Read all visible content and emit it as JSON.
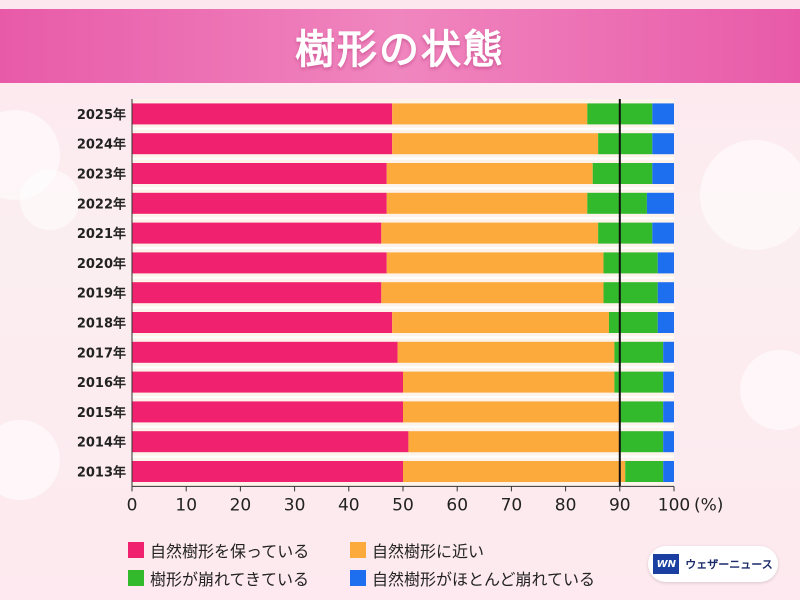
{
  "header": {
    "title": "樹形の状態"
  },
  "legend": {
    "items": [
      {
        "label": "自然樹形を保っている",
        "color": "#f0216e"
      },
      {
        "label": "自然樹形に近い",
        "color": "#fcaa3c"
      },
      {
        "label": "樹形が崩れてきている",
        "color": "#33b92c"
      },
      {
        "label": "自然樹形がほとんど崩れている",
        "color": "#1e6ef0"
      }
    ]
  },
  "brand": {
    "logo": "WN",
    "name": "ウェザーニュース"
  },
  "chart_data": {
    "type": "bar",
    "orientation": "horizontal",
    "stacked": true,
    "categories": [
      "2025年",
      "2024年",
      "2023年",
      "2022年",
      "2021年",
      "2020年",
      "2019年",
      "2018年",
      "2017年",
      "2016年",
      "2015年",
      "2014年",
      "2013年"
    ],
    "series": [
      {
        "name": "自然樹形を保っている",
        "values": [
          48,
          48,
          47,
          47,
          46,
          47,
          46,
          48,
          49,
          50,
          50,
          51,
          50
        ]
      },
      {
        "name": "自然樹形に近い",
        "values": [
          36,
          38,
          38,
          37,
          40,
          40,
          41,
          40,
          40,
          39,
          40,
          39,
          41
        ]
      },
      {
        "name": "樹形が崩れてきている",
        "values": [
          12,
          10,
          11,
          11,
          10,
          10,
          10,
          9,
          9,
          9,
          8,
          8,
          7
        ]
      },
      {
        "name": "自然樹形がほとんど崩れている",
        "values": [
          4,
          4,
          4,
          5,
          4,
          3,
          3,
          3,
          2,
          2,
          2,
          2,
          2
        ]
      }
    ],
    "xlim": [
      0,
      100
    ],
    "xticks": [
      0,
      10,
      20,
      30,
      40,
      50,
      60,
      70,
      80,
      90,
      100
    ],
    "xunit": "(%)",
    "reference_line": 90,
    "legend_position": "bottom"
  }
}
